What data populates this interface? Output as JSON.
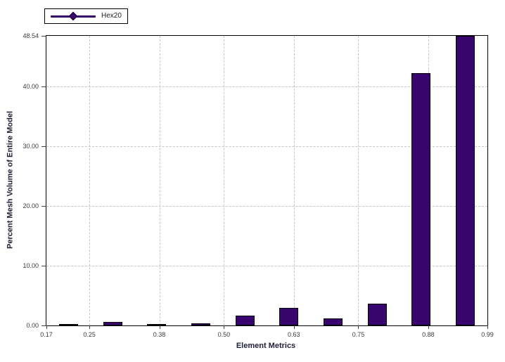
{
  "chart_data": {
    "type": "bar",
    "title": "",
    "xlabel": "Element Metrics",
    "ylabel": "Percent Mesh Volume of Entire Model",
    "series": [
      {
        "name": "Hex20",
        "x": [
          0.211,
          0.293,
          0.375,
          0.457,
          0.539,
          0.621,
          0.703,
          0.785,
          0.867,
          0.949
        ],
        "values": [
          0.2,
          0.55,
          0.2,
          0.3,
          1.6,
          2.95,
          1.2,
          3.6,
          42.3,
          48.54
        ]
      }
    ],
    "xlim": [
      0.17,
      0.99
    ],
    "ylim": [
      0,
      48.54
    ],
    "x_ticks": [
      0.17,
      0.25,
      0.38,
      0.5,
      0.63,
      0.75,
      0.88,
      0.99
    ],
    "x_tick_labels": [
      "0.17",
      "0.25",
      "0.38",
      "0.50",
      "0.63",
      "0.75",
      "0.88",
      "0.99"
    ],
    "y_ticks": [
      0,
      10,
      20,
      30,
      40,
      48.54
    ],
    "y_tick_labels": [
      "0.00",
      "10.00",
      "20.00",
      "30.00",
      "40.00",
      "48.54"
    ],
    "grid": true,
    "grid_style": "dashed",
    "legend_position": "top-left",
    "colors": {
      "bar_fill": "#38056e",
      "bar_border": "#000000",
      "grid": "#c6c6c6",
      "plot_border": "#000000",
      "tick_text": "#3c3c3c",
      "title_text": "#20203a",
      "background": "#ffffff"
    }
  }
}
